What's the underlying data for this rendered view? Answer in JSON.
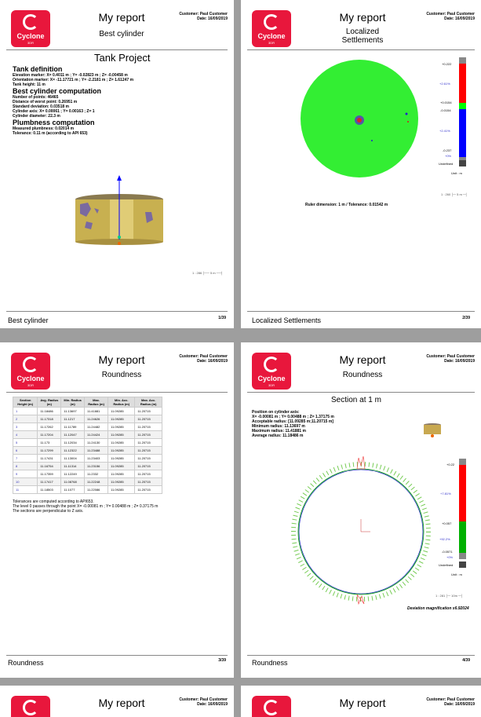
{
  "report_title": "My report",
  "customer": "Customer: Paul Customer",
  "date": "Date: 16/09/2019",
  "logo": {
    "name": "Cyclone",
    "sub": "3DR"
  },
  "pages": [
    {
      "subtitle": "Best cylinder",
      "footer": "Best cylinder",
      "page": "1/39",
      "project": "Tank Project",
      "sections": [
        {
          "heading": "Tank definition",
          "lines": [
            "Elevation marker: X= 0.4011 m ; Y= -0.02823 m ; Z= -0.00458 m",
            "Orientation marker: X= -11.17721 m ; Y= -2.2181 m ; Z= 1.61247 m",
            "Tank height: 11 m"
          ]
        },
        {
          "heading": "Best cylinder computation",
          "lines": [
            "Number of points:  46465",
            "Distance of worst point: 0.26951 m",
            "Standard deviation: 0.03518 m",
            "Cylinder axis: X= 0.00061 ; Y= 0.00163 ; Z= 1",
            "Cylinder diameter: 22.3 m"
          ]
        },
        {
          "heading": "Plumbness computation",
          "lines": [
            "Measured plumbness: 0.02014 m",
            "Tolerance: 0.11 m (according to API 653)"
          ]
        }
      ],
      "scale_label": "1 : 286",
      "scale_unit": "5 m"
    },
    {
      "subtitle": "Localized Settlements",
      "footer": "Localized Settlements",
      "page": "2/39",
      "ruler": "Ruler dimension: 1 m / Tolerance: 0.01542 m",
      "legend": {
        "max": "+0.222",
        "pct_top": "+2.61%",
        "mid_hi": "+0.0154",
        "mid_lo": "-0.0154",
        "pct_bot": "+2.41%",
        "min": "-0.237",
        "pct_min": "+0%",
        "undefined": "Undefined",
        "unit": "Unit : m",
        "scale": "1 : 260",
        "scale_unit": "5 m"
      },
      "colors": {
        "high": "#ff0000",
        "ok": "#00ff00",
        "low": "#0000ff"
      }
    },
    {
      "subtitle": "Roundness",
      "footer": "Roundness",
      "page": "3/39",
      "table": {
        "headers": [
          "Section Height (m)",
          "Avg. Radius (m)",
          "Min. Radius (m)",
          "Max. Radius (m)",
          "Min. Acc. Radius (m)",
          "Max. Acc. Radius (m)"
        ],
        "rows": [
          [
            "1",
            "11.18486",
            "11.13697",
            "11.41881",
            "11.09285",
            "11.20715"
          ],
          [
            "2",
            "11.17318",
            "11.1217",
            "11.24626",
            "11.09285",
            "11.20715"
          ],
          [
            "3",
            "11.17262",
            "11.11789",
            "11.24482",
            "11.09285",
            "11.20715"
          ],
          [
            "4",
            "11.17204",
            "11.12047",
            "11.24424",
            "11.09285",
            "11.20715"
          ],
          [
            "5",
            "11.173",
            "11.12034",
            "11.24130",
            "11.09285",
            "11.20715"
          ],
          [
            "6",
            "11.17299",
            "11.12322",
            "11.23488",
            "11.09285",
            "11.20715"
          ],
          [
            "7",
            "11.17431",
            "11.13004",
            "11.23403",
            "11.09285",
            "11.20715"
          ],
          [
            "8",
            "11.16754",
            "11.11314",
            "11.23156",
            "11.09285",
            "11.20715"
          ],
          [
            "9",
            "11.17359",
            "11.12249",
            "11.2332",
            "11.09285",
            "11.20715"
          ],
          [
            "10",
            "11.17417",
            "11.08768",
            "11.22248",
            "11.09285",
            "11.20715"
          ],
          [
            "11",
            "11.18503",
            "11.1077",
            "11.22086",
            "11.09285",
            "11.20715"
          ]
        ]
      },
      "notes": [
        "Tolerances are computed according to API653.",
        "The level 0 passes through the point X= -0.00081 m ; Y= 0.00488 m ; Z= 0.37175 m",
        "The sections are perpendicular to Z axis."
      ]
    },
    {
      "subtitle": "Roundness",
      "footer": "Roundness",
      "page": "4/39",
      "section_title": "Section at 1 m",
      "info": [
        "Position on cylinder axis:",
        "X= -0.00081 m ; Y= 0.00488 m ; Z= 1.37175 m",
        "Acceptable radius: [11.09285 m;11.20715 m]",
        "Minimum radius: 11.13697 m",
        "Maximum radius: 11.41881 m",
        "Average radius: 11.18486 m"
      ],
      "legend": {
        "max": "+0.22",
        "pct_top": "+7.81%",
        "mid_hi": "+0.057",
        "pct_mid": "+92.2%",
        "min": "-0.0571",
        "pct_min": "+0%",
        "undefined": "Undefined",
        "unit": "Unit : m",
        "scale": "1 : 281",
        "scale_unit": "10m"
      },
      "magnification": "Deviation magnification x6.92024",
      "colors": {
        "high": "#ff0000",
        "ok": "#00b000"
      }
    }
  ]
}
